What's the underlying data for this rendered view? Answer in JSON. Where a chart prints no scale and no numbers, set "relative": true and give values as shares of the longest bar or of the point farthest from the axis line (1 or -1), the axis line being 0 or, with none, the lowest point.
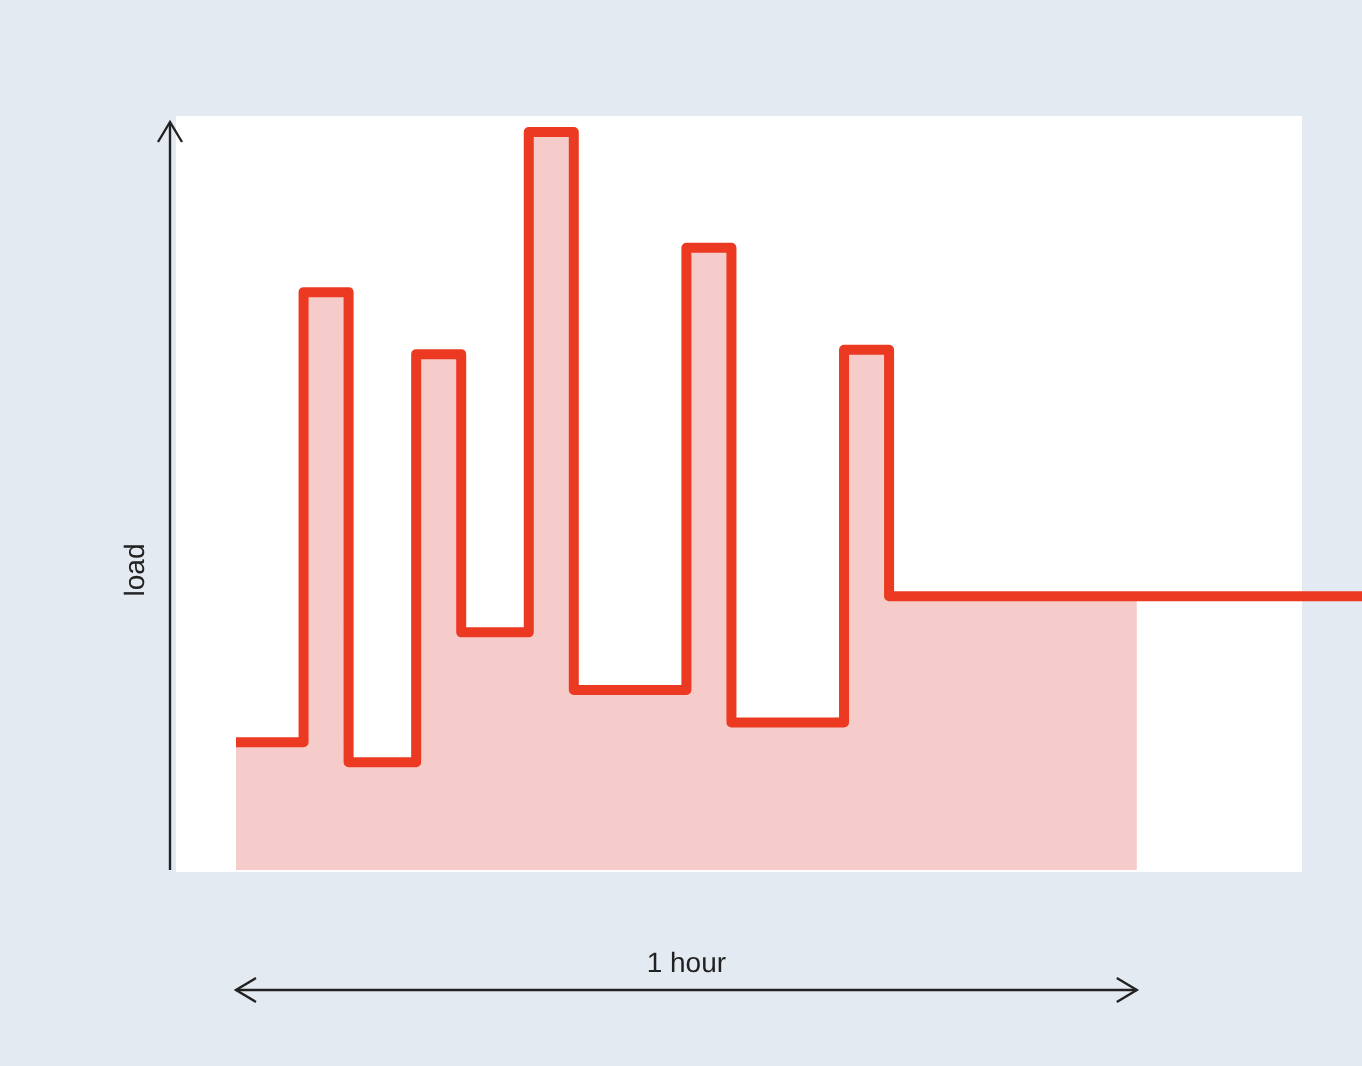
{
  "chart_data": {
    "type": "step",
    "relative": true,
    "xlabel": "1 hour",
    "ylabel": "load",
    "categories": [
      null,
      null,
      null,
      null,
      null,
      null,
      null,
      null,
      null,
      null,
      null,
      null,
      null,
      null,
      null,
      null,
      null,
      null,
      null,
      null,
      null,
      null,
      null,
      null,
      null,
      null,
      null,
      null,
      null,
      null,
      null,
      null,
      null,
      null,
      null,
      null,
      null,
      null,
      null,
      null,
      null,
      null,
      null,
      null,
      null,
      null,
      null,
      null,
      null,
      null,
      null
    ],
    "series": [
      {
        "type": "area",
        "color": "#f6cccb",
        "values": [
          0.173,
          0.173,
          0.173,
          0.783,
          0.783,
          0.146,
          0.146,
          0.146,
          0.699,
          0.699,
          0.322,
          0.322,
          0.322,
          1,
          1,
          0.244,
          0.244,
          0.244,
          0.244,
          0.244,
          0.843,
          0.843,
          0.2,
          0.2,
          0.2,
          0.2,
          0.2,
          0.705,
          0.705,
          0.371,
          0.371,
          0.371,
          0.371,
          0.371,
          0.371,
          0.371,
          0.371,
          0.371,
          0.371,
          0.371,
          0.371,
          null,
          null,
          null,
          null,
          null,
          null,
          null,
          null,
          null,
          null
        ]
      },
      {
        "color": "#ec3a22",
        "values": [
          0.173,
          0.173,
          0.173,
          0.783,
          0.783,
          0.146,
          0.146,
          0.146,
          0.699,
          0.699,
          0.322,
          0.322,
          0.322,
          1,
          1,
          0.244,
          0.244,
          0.244,
          0.244,
          0.244,
          0.843,
          0.843,
          0.2,
          0.2,
          0.2,
          0.2,
          0.2,
          0.705,
          0.705,
          0.371,
          0.371,
          0.371,
          0.371,
          0.371,
          0.371,
          0.371,
          0.371,
          0.371,
          0.371,
          0.371,
          0.371,
          0.371,
          0.371,
          0.371,
          0.371,
          0.371,
          0.371,
          0.371,
          0.371,
          0.371,
          0.371
        ]
      }
    ]
  }
}
